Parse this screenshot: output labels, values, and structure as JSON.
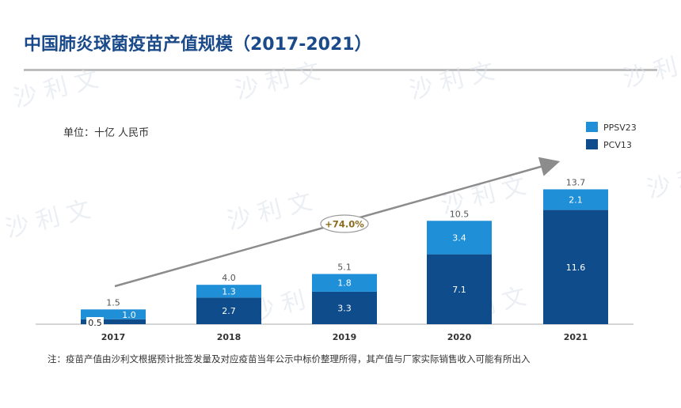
{
  "title": "中国肺炎球菌疫苗产值规模（2017-2021）",
  "unit_label": "单位：十亿 人民币",
  "footnote": "注：疫苗产值由沙利文根据预计批签发量及对应疫苗当年公示中标价整理所得，其产值与厂家实际销售收入可能有所出入",
  "watermark": "沙 利 文",
  "colors": {
    "title": "#1a4a8a",
    "pcv13": "#0f4c8c",
    "ppsv23": "#1f8fd8",
    "arrow": "#8c8c8c",
    "cagr_text": "#8a6d1e"
  },
  "chart_data": {
    "type": "bar",
    "stacked": true,
    "categories": [
      "2017",
      "2018",
      "2019",
      "2020",
      "2021"
    ],
    "series": [
      {
        "name": "PCV13",
        "values": [
          0.5,
          2.7,
          3.3,
          7.1,
          11.6
        ]
      },
      {
        "name": "PPSV23",
        "values": [
          1.0,
          1.3,
          1.8,
          3.4,
          2.1
        ]
      }
    ],
    "totals": [
      1.5,
      4.0,
      5.1,
      10.5,
      13.7
    ],
    "value_labels": {
      "PCV13": [
        "0.5",
        "2.7",
        "3.3",
        "7.1",
        "11.6"
      ],
      "PPSV23": [
        "1.0",
        "1.3",
        "1.8",
        "3.4",
        "2.1"
      ],
      "totals": [
        "1.5",
        "4.0",
        "5.1",
        "10.5",
        "13.7"
      ]
    },
    "cagr_label": "+74.0%",
    "legend_position": "top-right",
    "ylim": [
      0,
      15
    ],
    "grid": false
  }
}
